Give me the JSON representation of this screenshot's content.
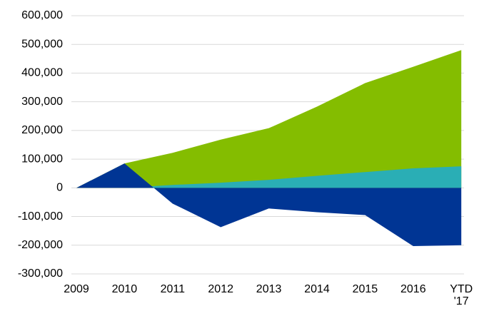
{
  "chart_data": {
    "type": "area",
    "categories": [
      "2009",
      "2010",
      "2011",
      "2012",
      "2013",
      "2014",
      "2015",
      "2016",
      "YTD '17"
    ],
    "series": [
      {
        "color": "#003594",
        "values": [
          0,
          85000,
          -55000,
          -137000,
          -72000,
          -85000,
          -95000,
          -203000,
          -200000
        ]
      },
      {
        "color": "#2aaeb5",
        "values": [
          0,
          0,
          10000,
          18000,
          28000,
          42000,
          55000,
          68000,
          75000
        ]
      },
      {
        "color": "#84bd00",
        "values": [
          0,
          0,
          112000,
          150000,
          180000,
          241000,
          310000,
          354000,
          405000
        ]
      }
    ],
    "ylim": [
      -300000,
      600000
    ],
    "yticks": [
      {
        "value": -300000,
        "label": "-300,000"
      },
      {
        "value": -200000,
        "label": "-200,000"
      },
      {
        "value": -100000,
        "label": "-100,000"
      },
      0,
      {
        "value": 100000,
        "label": "100,000"
      },
      {
        "value": 200000,
        "label": "200,000"
      },
      {
        "value": 300000,
        "label": "300,000"
      },
      {
        "value": 400000,
        "label": "400,000"
      },
      {
        "value": 500000,
        "label": "500,000"
      },
      {
        "value": 600000,
        "label": "600,000"
      }
    ],
    "grid": true
  }
}
